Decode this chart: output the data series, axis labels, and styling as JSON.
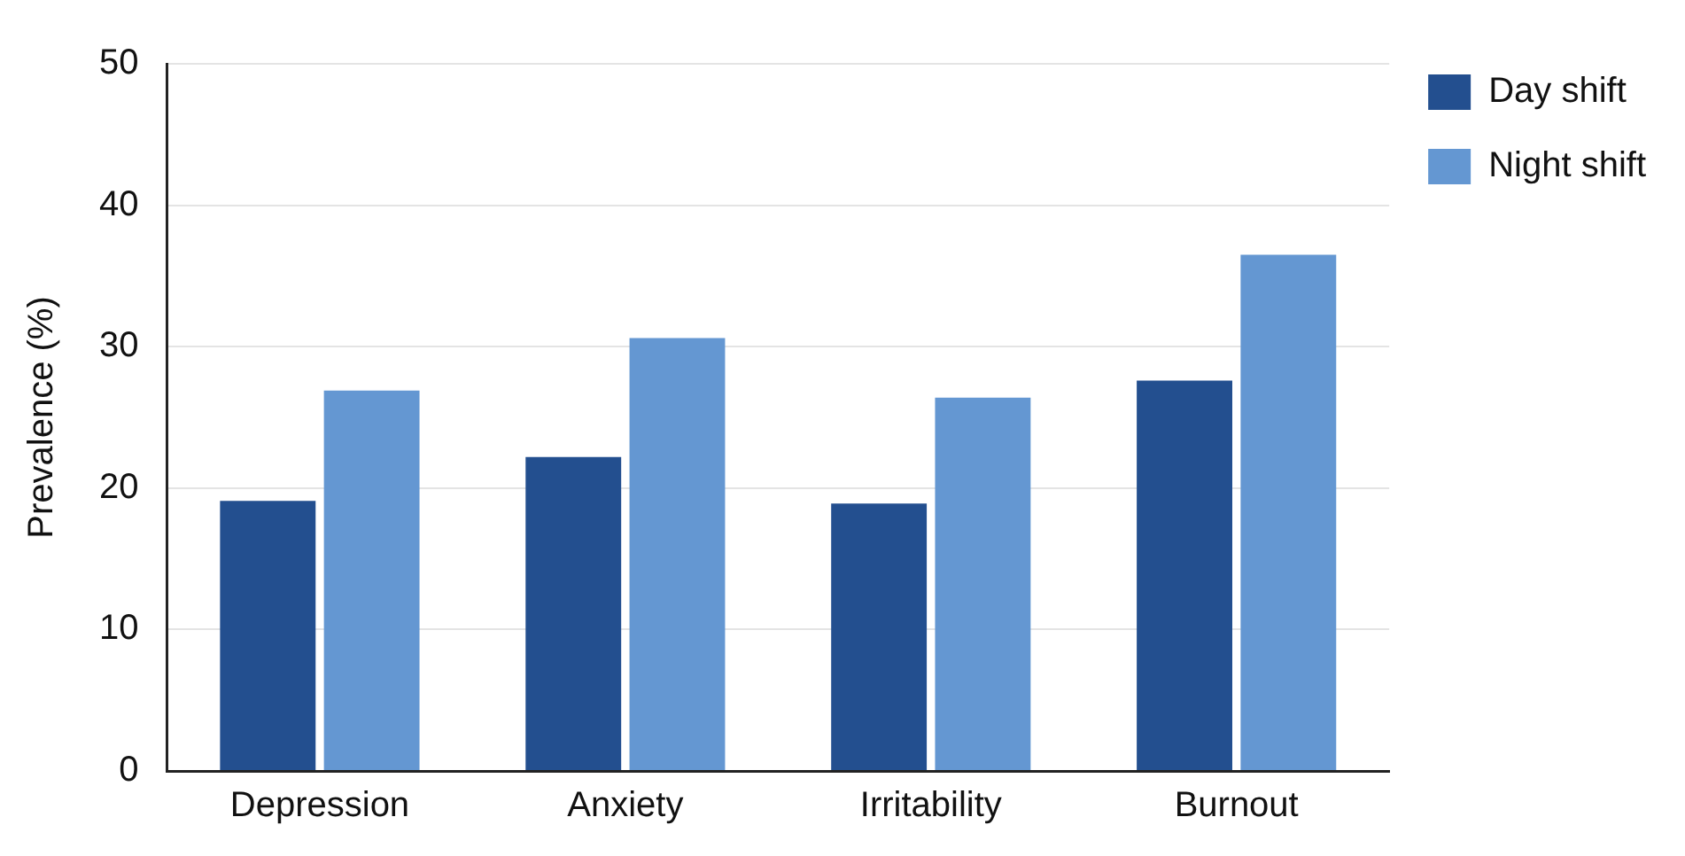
{
  "chart_data": {
    "type": "bar",
    "ylabel": "Prevalence (%)",
    "categories": [
      "Depression",
      "Anxiety",
      "Irritability",
      "Burnout"
    ],
    "series": [
      {
        "name": "Day shift",
        "color": "#234f8f",
        "values": [
          19.1,
          22.2,
          18.9,
          27.6
        ]
      },
      {
        "name": "Night shift",
        "color": "#6497d2",
        "values": [
          26.9,
          30.6,
          26.4,
          36.5
        ]
      }
    ],
    "ylim": [
      0,
      50
    ],
    "yticks": [
      0,
      10,
      20,
      30,
      40,
      50
    ],
    "grid": "y",
    "legend": "top right"
  }
}
